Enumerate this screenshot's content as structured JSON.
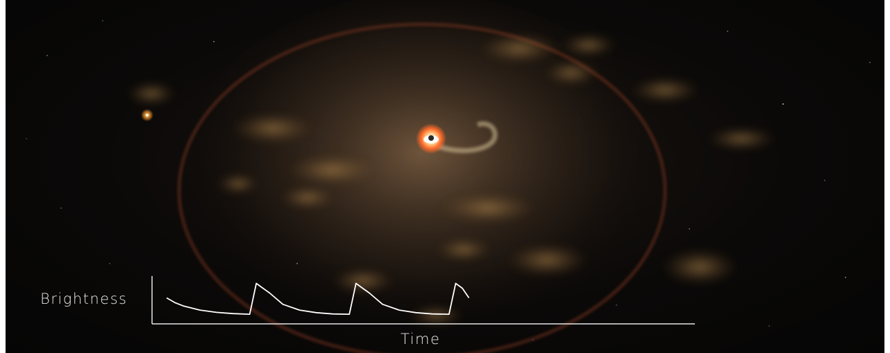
{
  "chart_data": {
    "type": "line",
    "xlabel": "Time",
    "ylabel": "Brightness",
    "grid": false,
    "legend": "none",
    "series": [
      {
        "x": [
          0,
          0.5,
          1,
          2,
          3,
          4,
          5,
          5.4,
          5.8,
          6.2,
          7,
          8,
          9,
          10,
          11,
          11.4,
          11.8,
          12.2,
          13,
          14,
          15,
          16,
          17,
          17.4,
          17.8,
          18.2
        ],
        "y": [
          0.55,
          0.4,
          0.3,
          0.17,
          0.1,
          0.06,
          0.04,
          1.0,
          0.85,
          0.7,
          0.35,
          0.17,
          0.09,
          0.05,
          0.04,
          1.0,
          0.85,
          0.7,
          0.35,
          0.17,
          0.09,
          0.05,
          0.04,
          1.0,
          0.85,
          0.55
        ],
        "color": "#ffffff"
      }
    ],
    "xlim": [
      0,
      31.8
    ],
    "ylim": [
      0,
      1.25
    ]
  },
  "colors": {
    "background": "#070606",
    "glow": "#c79b6e",
    "ring": "#8a3a24",
    "dust": "#b58a4c",
    "source_core": "#ff8a3c",
    "axes": "#e6e6e6"
  }
}
